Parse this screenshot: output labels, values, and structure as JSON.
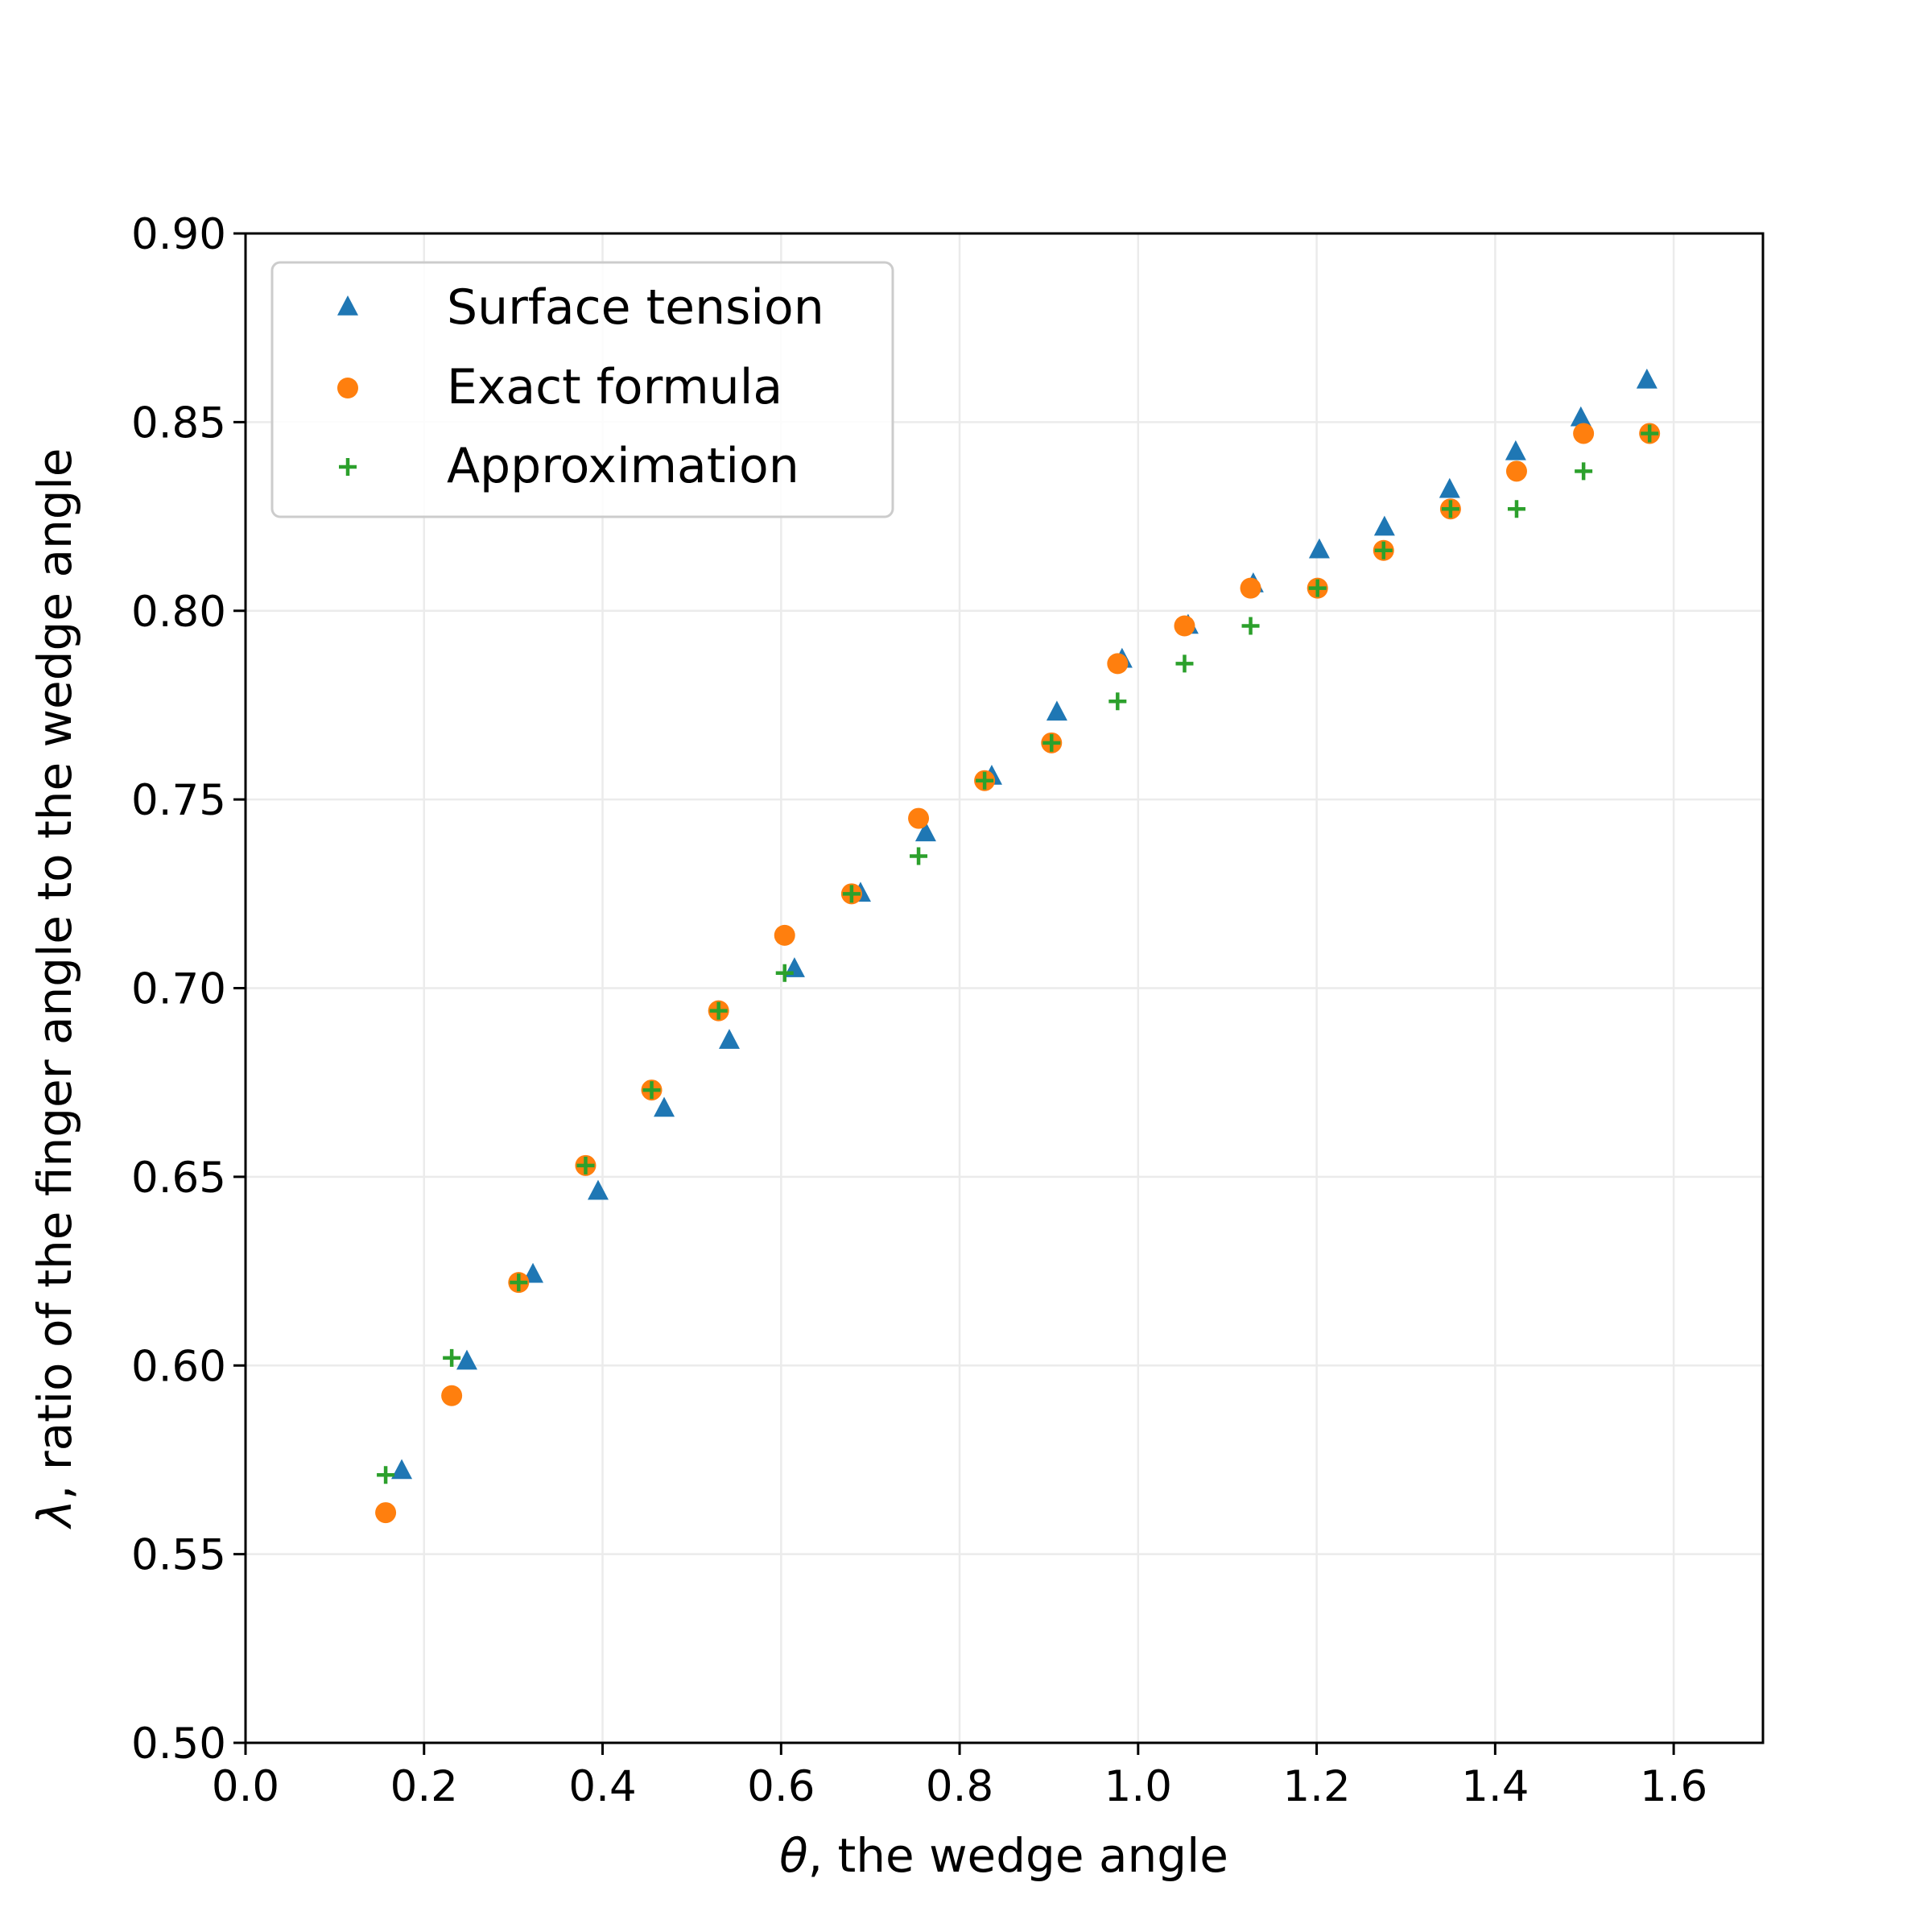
{
  "chart_data": {
    "type": "scatter",
    "title": "",
    "xlabel_symbol": "θ",
    "xlabel_rest": ", the wedge angle",
    "ylabel_symbol": "λ",
    "ylabel_rest": ", ratio of the finger angle to the wedge angle",
    "xlim": [
      0.0,
      1.7
    ],
    "ylim": [
      0.5,
      0.9
    ],
    "x_ticks": [
      "0.0",
      "0.2",
      "0.4",
      "0.6",
      "0.8",
      "1.0",
      "1.2",
      "1.4",
      "1.6"
    ],
    "y_ticks": [
      "0.50",
      "0.55",
      "0.60",
      "0.65",
      "0.70",
      "0.75",
      "0.80",
      "0.85",
      "0.90"
    ],
    "grid": true,
    "legend_position": "top-left",
    "series": [
      {
        "name": "Surface tension",
        "marker": "triangle",
        "color": "#1f77b4",
        "points": [
          [
            0.175,
            0.572
          ],
          [
            0.248,
            0.601
          ],
          [
            0.322,
            0.624
          ],
          [
            0.395,
            0.646
          ],
          [
            0.469,
            0.668
          ],
          [
            0.542,
            0.686
          ],
          [
            0.615,
            0.705
          ],
          [
            0.689,
            0.725
          ],
          [
            0.762,
            0.741
          ],
          [
            0.836,
            0.756
          ],
          [
            0.909,
            0.773
          ],
          [
            0.982,
            0.787
          ],
          [
            1.056,
            0.796
          ],
          [
            1.129,
            0.807
          ],
          [
            1.203,
            0.816
          ],
          [
            1.276,
            0.822
          ],
          [
            1.349,
            0.832
          ],
          [
            1.423,
            0.842
          ],
          [
            1.496,
            0.851
          ],
          [
            1.57,
            0.861
          ]
        ]
      },
      {
        "name": "Exact formula",
        "marker": "circle",
        "color": "#ff7f0e",
        "points": [
          [
            0.157,
            0.561
          ],
          [
            0.231,
            0.592
          ],
          [
            0.306,
            0.622
          ],
          [
            0.381,
            0.653
          ],
          [
            0.455,
            0.673
          ],
          [
            0.53,
            0.694
          ],
          [
            0.604,
            0.714
          ],
          [
            0.679,
            0.725
          ],
          [
            0.754,
            0.745
          ],
          [
            0.828,
            0.755
          ],
          [
            0.903,
            0.765
          ],
          [
            0.977,
            0.786
          ],
          [
            1.052,
            0.796
          ],
          [
            1.126,
            0.806
          ],
          [
            1.201,
            0.806
          ],
          [
            1.275,
            0.816
          ],
          [
            1.35,
            0.827
          ],
          [
            1.424,
            0.837
          ],
          [
            1.499,
            0.847
          ],
          [
            1.573,
            0.847
          ]
        ]
      },
      {
        "name": "Approximation",
        "marker": "plus",
        "color": "#2ca02c",
        "points": [
          [
            0.157,
            0.571
          ],
          [
            0.231,
            0.602
          ],
          [
            0.306,
            0.622
          ],
          [
            0.381,
            0.653
          ],
          [
            0.455,
            0.673
          ],
          [
            0.53,
            0.694
          ],
          [
            0.604,
            0.704
          ],
          [
            0.679,
            0.725
          ],
          [
            0.754,
            0.735
          ],
          [
            0.828,
            0.755
          ],
          [
            0.903,
            0.765
          ],
          [
            0.977,
            0.776
          ],
          [
            1.052,
            0.786
          ],
          [
            1.126,
            0.796
          ],
          [
            1.201,
            0.806
          ],
          [
            1.275,
            0.816
          ],
          [
            1.35,
            0.827
          ],
          [
            1.424,
            0.827
          ],
          [
            1.499,
            0.837
          ],
          [
            1.573,
            0.847
          ]
        ]
      }
    ]
  }
}
